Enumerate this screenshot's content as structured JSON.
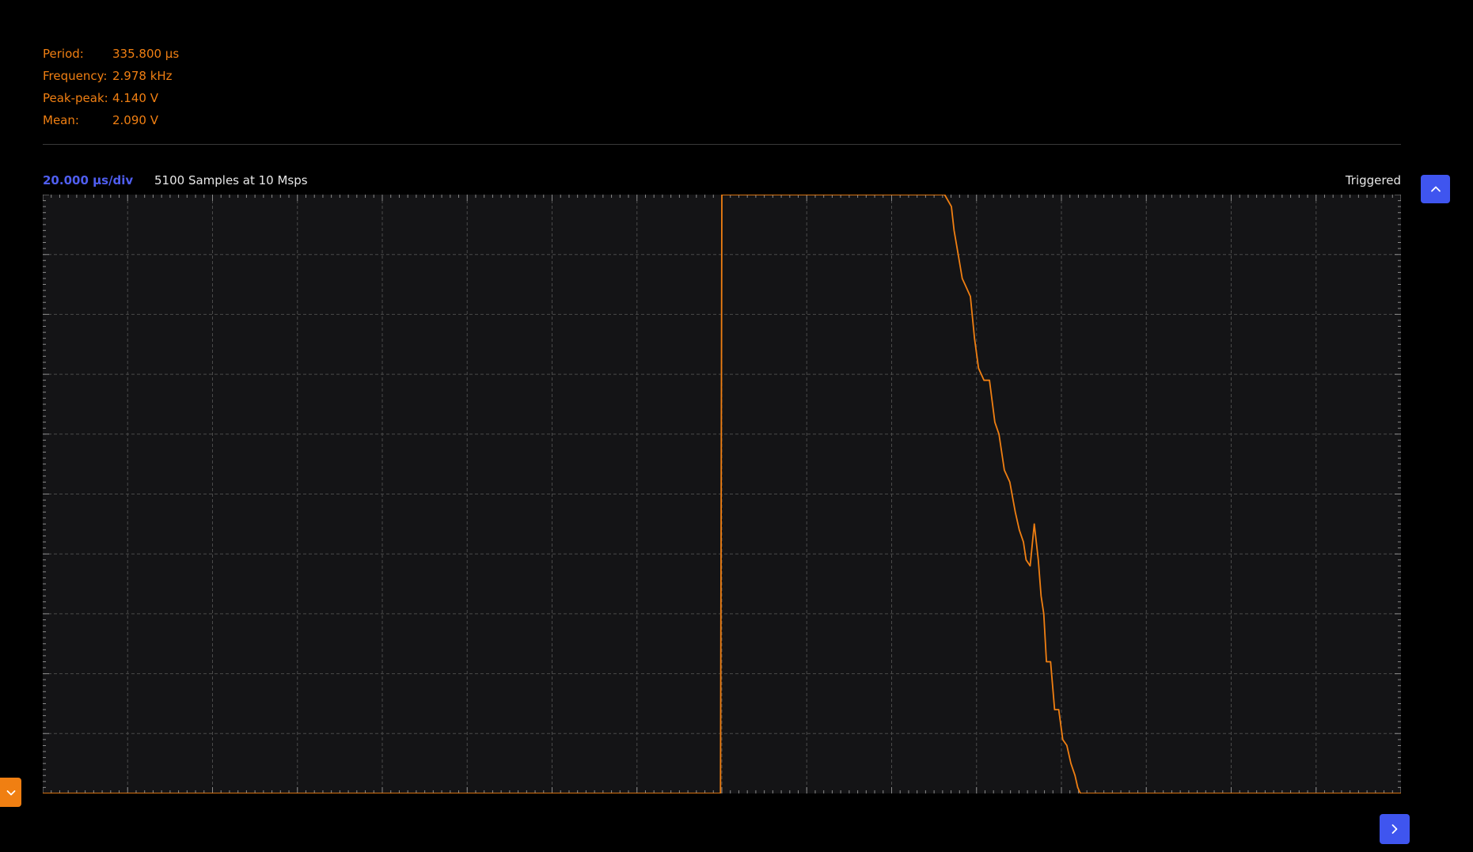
{
  "measurements": [
    {
      "label": "Period:",
      "value": "335.800 µs"
    },
    {
      "label": "Frequency:",
      "value": "2.978 kHz"
    },
    {
      "label": "Peak-peak:",
      "value": "4.140 V"
    },
    {
      "label": "Mean:",
      "value": "2.090 V"
    }
  ],
  "scope": {
    "timebase": "20.000 µs/div",
    "samples": "5100 Samples at 10 Msps",
    "status": "Triggered",
    "divisions_x": 16,
    "divisions_y": 10,
    "trace_normalized": {
      "x": [
        0,
        0.499,
        0.5,
        0.664,
        0.669,
        0.671,
        0.674,
        0.677,
        0.679,
        0.683,
        0.686,
        0.689,
        0.693,
        0.697,
        0.701,
        0.704,
        0.708,
        0.712,
        0.716,
        0.719,
        0.722,
        0.724,
        0.727,
        0.73,
        0.733,
        0.735,
        0.737,
        0.739,
        0.742,
        0.745,
        0.748,
        0.751,
        0.754,
        0.757,
        0.76,
        0.762,
        0.764,
        1
      ],
      "y": [
        0,
        0,
        1,
        1,
        0.98,
        0.94,
        0.9,
        0.86,
        0.85,
        0.83,
        0.76,
        0.71,
        0.69,
        0.69,
        0.62,
        0.6,
        0.54,
        0.52,
        0.47,
        0.44,
        0.42,
        0.39,
        0.38,
        0.45,
        0.39,
        0.33,
        0.3,
        0.22,
        0.22,
        0.14,
        0.14,
        0.09,
        0.08,
        0.05,
        0.03,
        0.01,
        0,
        0
      ]
    }
  },
  "icons": {
    "up": "chevron-up-icon",
    "right": "chevron-right-icon",
    "down": "chevron-down-icon"
  },
  "colors": {
    "measure": "#f07f12",
    "trace": "#f07f12",
    "timebase": "#4f5ef0",
    "button_blue": "#3f55ef",
    "button_orange": "#f07f12",
    "grid": "#4a4a4a",
    "ticks": "#8a8a8a"
  }
}
